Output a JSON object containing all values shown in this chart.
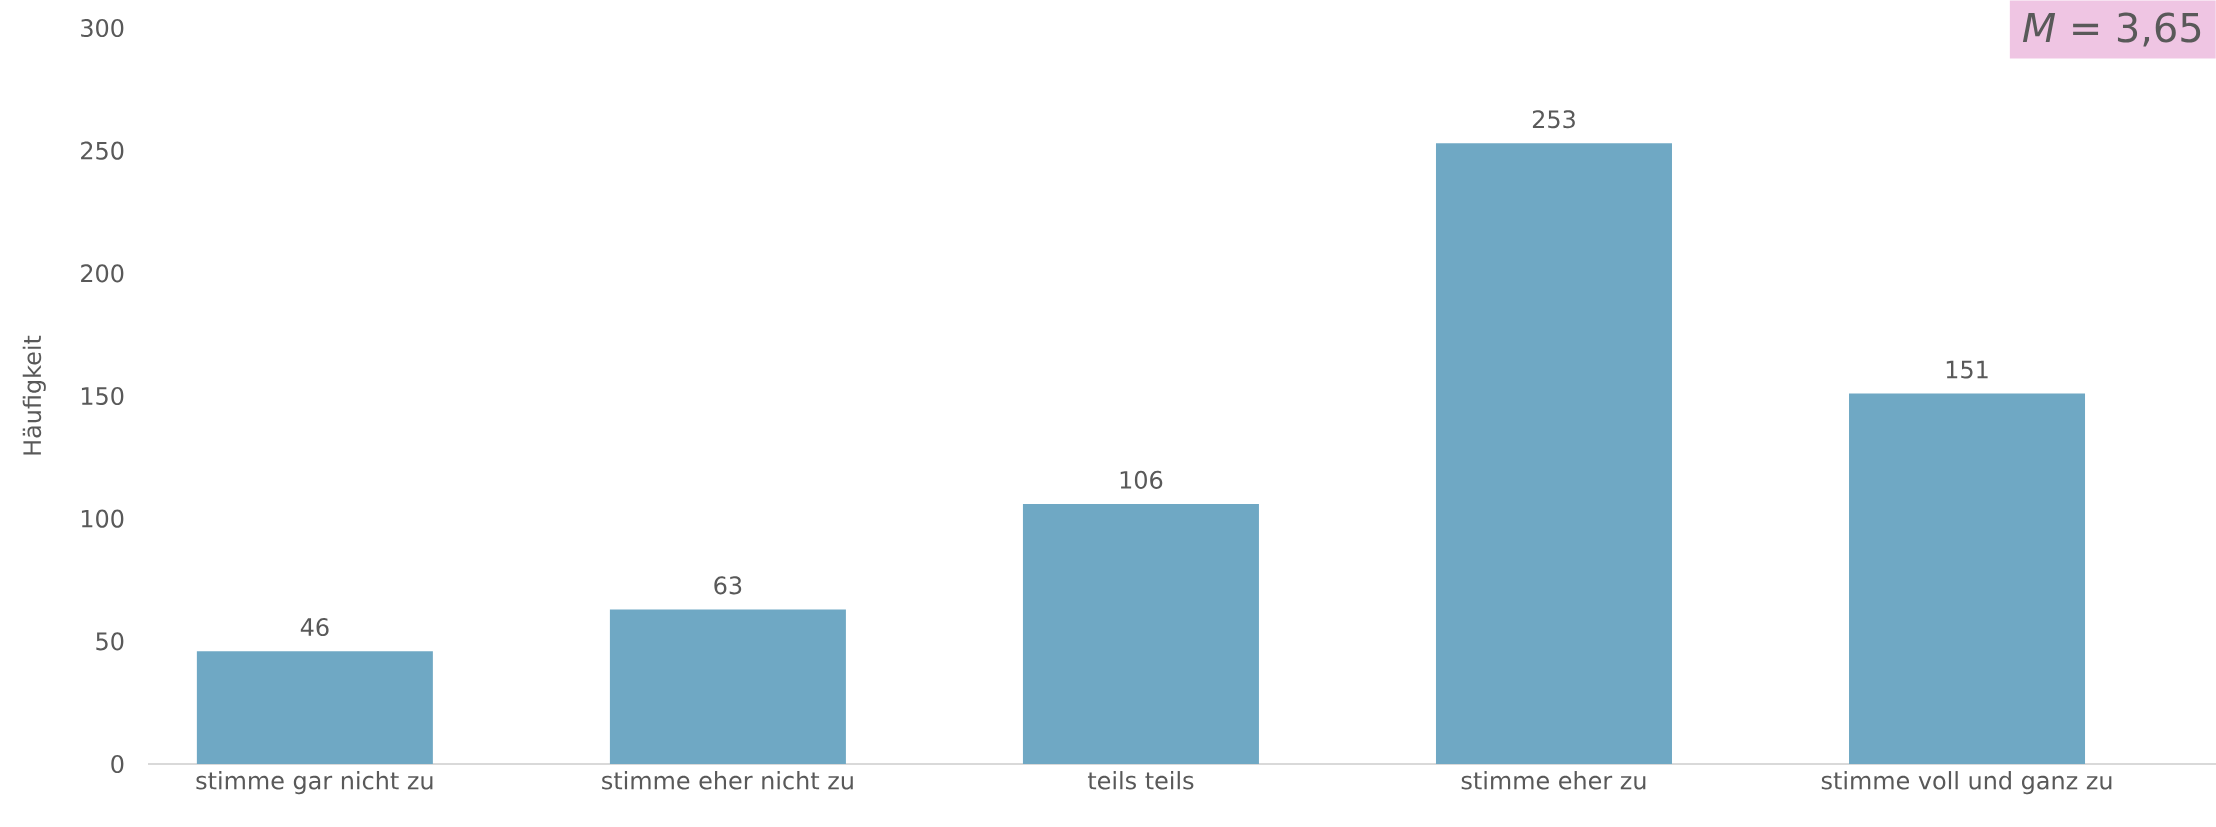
{
  "chart_data": {
    "type": "bar",
    "categories": [
      "stimme gar nicht zu",
      "stimme eher nicht zu",
      "teils teils",
      "stimme eher zu",
      "stimme voll und ganz zu"
    ],
    "values": [
      46,
      63,
      106,
      253,
      151
    ],
    "color": "#6fa8c4",
    "ylabel": "Häufigkeit",
    "ylim": [
      0,
      300
    ],
    "yticks": [
      0,
      50,
      100,
      150,
      200,
      250,
      300
    ],
    "data_labels": true,
    "annotations": [
      "*M* = 3,65"
    ]
  }
}
